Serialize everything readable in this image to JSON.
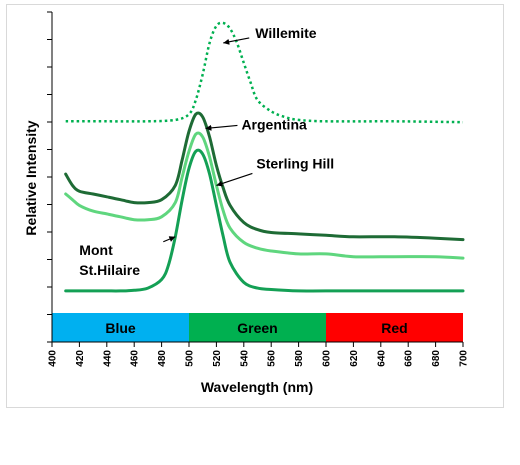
{
  "chart_data": {
    "type": "line",
    "xlabel": "Wavelength (nm)",
    "ylabel": "Relative Intensity",
    "xlim": [
      400,
      700
    ],
    "ylim": [
      0,
      1
    ],
    "x_ticks": [
      400,
      420,
      440,
      460,
      480,
      500,
      520,
      540,
      560,
      580,
      600,
      620,
      640,
      660,
      680,
      700
    ],
    "y_tick_count": 12,
    "grid": false,
    "legend": "none",
    "bands": [
      {
        "label": "Blue",
        "x0": 400,
        "x1": 500,
        "color": "#00b0f0"
      },
      {
        "label": "Green",
        "x0": 500,
        "x1": 600,
        "color": "#00b050"
      },
      {
        "label": "Red",
        "x0": 600,
        "x1": 700,
        "color": "#ff0000"
      }
    ],
    "series": [
      {
        "name": "Willemite",
        "color": "#00b050",
        "style": "dotted",
        "width": 2.5,
        "x": [
          410,
          440,
          470,
          490,
          500,
          505,
          510,
          515,
          520,
          525,
          530,
          535,
          540,
          545,
          550,
          560,
          570,
          580,
          600,
          650,
          700
        ],
        "y": [
          0.655,
          0.655,
          0.655,
          0.66,
          0.68,
          0.73,
          0.82,
          0.93,
          0.99,
          1.0,
          0.98,
          0.93,
          0.86,
          0.79,
          0.73,
          0.69,
          0.67,
          0.66,
          0.655,
          0.655,
          0.652
        ]
      },
      {
        "name": "Argentina",
        "color": "#1e6b35",
        "style": "solid",
        "width": 3,
        "x": [
          410,
          415,
          420,
          430,
          440,
          450,
          460,
          470,
          480,
          490,
          495,
          500,
          505,
          510,
          515,
          520,
          525,
          530,
          540,
          550,
          560,
          580,
          600,
          620,
          650,
          680,
          700
        ],
        "y": [
          0.47,
          0.43,
          0.41,
          0.4,
          0.39,
          0.38,
          0.37,
          0.37,
          0.38,
          0.43,
          0.52,
          0.62,
          0.68,
          0.67,
          0.6,
          0.5,
          0.42,
          0.36,
          0.3,
          0.275,
          0.265,
          0.26,
          0.255,
          0.25,
          0.25,
          0.245,
          0.24
        ]
      },
      {
        "name": "Sterling Hill",
        "color": "#5fd67e",
        "style": "solid",
        "width": 3,
        "x": [
          410,
          415,
          420,
          430,
          440,
          450,
          460,
          470,
          480,
          490,
          495,
          500,
          505,
          510,
          515,
          520,
          525,
          530,
          540,
          550,
          560,
          580,
          600,
          620,
          650,
          680,
          700
        ],
        "y": [
          0.4,
          0.38,
          0.36,
          0.34,
          0.33,
          0.32,
          0.31,
          0.31,
          0.32,
          0.37,
          0.46,
          0.55,
          0.61,
          0.6,
          0.53,
          0.43,
          0.34,
          0.28,
          0.23,
          0.21,
          0.2,
          0.19,
          0.19,
          0.18,
          0.18,
          0.18,
          0.175
        ]
      },
      {
        "name": "Mont St.Hilaire",
        "color": "#14a055",
        "style": "solid",
        "width": 3,
        "x": [
          410,
          420,
          430,
          440,
          450,
          460,
          470,
          480,
          485,
          490,
          495,
          500,
          505,
          510,
          515,
          520,
          525,
          530,
          540,
          550,
          560,
          580,
          600,
          650,
          700
        ],
        "y": [
          0.06,
          0.06,
          0.06,
          0.06,
          0.06,
          0.062,
          0.07,
          0.1,
          0.15,
          0.25,
          0.38,
          0.49,
          0.55,
          0.54,
          0.47,
          0.36,
          0.25,
          0.16,
          0.09,
          0.07,
          0.065,
          0.06,
          0.06,
          0.06,
          0.06
        ]
      }
    ],
    "annotations": [
      {
        "series": "Willemite",
        "lines": [
          "Willemite"
        ],
        "tip": [
          525,
          0.93
        ]
      },
      {
        "series": "Argentina",
        "lines": [
          "Argentina"
        ],
        "tip": [
          512,
          0.63
        ]
      },
      {
        "series": "Sterling Hill",
        "lines": [
          "Sterling Hill"
        ],
        "tip": [
          520,
          0.43
        ]
      },
      {
        "series": "Mont St.Hilaire",
        "lines": [
          "Mont",
          "St.Hilaire"
        ],
        "tip": [
          490,
          0.25
        ]
      }
    ]
  }
}
